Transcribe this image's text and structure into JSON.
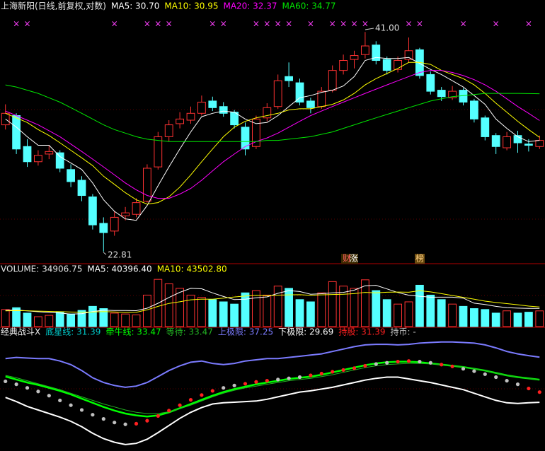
{
  "chart_data": [
    {
      "type": "candlestick",
      "title": "上海新阳(日线,前复权,对数)",
      "log_scale": true,
      "ylim": [
        22.3,
        43
      ],
      "up_color": "#ff3232",
      "down_color": "#54ffff",
      "categories": [
        null,
        null,
        null,
        null,
        null,
        null,
        null,
        null,
        null,
        null,
        null,
        null,
        null,
        null,
        null,
        null,
        null,
        null,
        null,
        null,
        null,
        null,
        null,
        null,
        null,
        null,
        null,
        null,
        null,
        null,
        null,
        null,
        null,
        null,
        null,
        null,
        null,
        null,
        null,
        null,
        null,
        null,
        null,
        null,
        null,
        null,
        null,
        null,
        null,
        null
      ],
      "ohlc": [
        [
          32.0,
          33.8,
          31.6,
          33.0
        ],
        [
          32.8,
          33.0,
          29.6,
          30.0
        ],
        [
          30.2,
          30.8,
          28.6,
          29.0
        ],
        [
          29.0,
          29.9,
          28.7,
          29.5
        ],
        [
          29.6,
          30.3,
          29.2,
          29.8
        ],
        [
          29.7,
          29.9,
          28.2,
          28.5
        ],
        [
          28.4,
          28.8,
          27.1,
          27.5
        ],
        [
          27.6,
          27.9,
          26.1,
          26.5
        ],
        [
          26.4,
          26.6,
          24.2,
          24.5
        ],
        [
          24.6,
          25.0,
          22.81,
          24.0
        ],
        [
          24.1,
          25.4,
          23.8,
          25.0
        ],
        [
          25.1,
          25.7,
          24.8,
          25.3
        ],
        [
          25.2,
          26.3,
          25.0,
          26.0
        ],
        [
          26.1,
          28.8,
          26.0,
          28.5
        ],
        [
          28.6,
          31.4,
          28.4,
          31.0
        ],
        [
          31.0,
          32.4,
          30.6,
          32.0
        ],
        [
          32.1,
          33.1,
          31.7,
          32.5
        ],
        [
          32.4,
          33.6,
          32.1,
          33.0
        ],
        [
          33.0,
          34.6,
          32.8,
          34.0
        ],
        [
          34.1,
          34.5,
          33.2,
          33.5
        ],
        [
          33.6,
          34.0,
          32.7,
          33.0
        ],
        [
          33.1,
          33.3,
          31.7,
          32.0
        ],
        [
          31.8,
          32.2,
          29.5,
          30.0
        ],
        [
          30.2,
          32.8,
          30.0,
          32.5
        ],
        [
          32.6,
          33.9,
          32.3,
          33.5
        ],
        [
          33.6,
          36.6,
          33.4,
          36.0
        ],
        [
          36.4,
          37.8,
          35.4,
          36.0
        ],
        [
          35.8,
          36.2,
          33.7,
          34.0
        ],
        [
          34.1,
          34.4,
          33.0,
          33.5
        ],
        [
          33.6,
          35.4,
          33.4,
          35.0
        ],
        [
          35.1,
          37.5,
          34.9,
          37.0
        ],
        [
          37.0,
          38.6,
          36.6,
          38.0
        ],
        [
          38.1,
          39.0,
          37.2,
          38.5
        ],
        [
          38.6,
          41.0,
          38.2,
          39.5
        ],
        [
          39.6,
          40.0,
          37.6,
          38.0
        ],
        [
          38.1,
          38.4,
          36.6,
          37.0
        ],
        [
          37.1,
          38.4,
          36.8,
          38.0
        ],
        [
          38.1,
          40.4,
          37.8,
          39.0
        ],
        [
          39.1,
          39.3,
          36.2,
          36.5
        ],
        [
          36.6,
          36.9,
          34.7,
          35.0
        ],
        [
          35.1,
          35.4,
          34.1,
          34.5
        ],
        [
          34.4,
          35.5,
          34.2,
          35.0
        ],
        [
          35.1,
          35.3,
          33.7,
          34.0
        ],
        [
          34.1,
          34.3,
          32.2,
          32.5
        ],
        [
          32.6,
          32.8,
          30.7,
          31.0
        ],
        [
          31.1,
          31.3,
          29.6,
          30.2
        ],
        [
          30.1,
          31.4,
          29.9,
          31.0
        ],
        [
          31.1,
          31.5,
          29.7,
          30.5
        ],
        [
          30.4,
          30.8,
          29.8,
          30.3
        ],
        [
          30.2,
          31.1,
          30.0,
          30.7
        ]
      ],
      "series": [
        {
          "name": "MA5: 30.70",
          "color": "#ffffff",
          "values": [
            32.5,
            31.8,
            31.0,
            30.3,
            30.3,
            29.4,
            28.9,
            28.4,
            27.4,
            26.2,
            25.4,
            24.9,
            24.8,
            25.8,
            27.2,
            28.6,
            30.0,
            31.4,
            32.7,
            33.0,
            33.2,
            33.1,
            32.5,
            32.1,
            32.2,
            32.8,
            33.6,
            34.4,
            34.6,
            34.9,
            35.1,
            35.5,
            36.4,
            38.0,
            38.3,
            38.2,
            38.2,
            38.3,
            37.7,
            37.1,
            36.6,
            36.0,
            35.4,
            34.6,
            33.8,
            32.5,
            31.7,
            31.0,
            30.6,
            30.7
          ]
        },
        {
          "name": "MA10: 30.95",
          "color": "#ffff00",
          "values": [
            33.0,
            32.6,
            32.2,
            31.6,
            31.1,
            30.5,
            29.9,
            29.3,
            28.7,
            27.9,
            27.3,
            26.7,
            26.2,
            25.9,
            26.0,
            26.4,
            27.1,
            28.0,
            29.0,
            30.0,
            31.0,
            31.8,
            32.3,
            32.6,
            32.8,
            33.0,
            33.3,
            33.4,
            33.4,
            33.6,
            33.8,
            34.2,
            34.8,
            35.6,
            36.2,
            36.7,
            37.2,
            37.8,
            37.8,
            37.6,
            37.0,
            36.6,
            36.2,
            35.6,
            34.8,
            33.9,
            33.1,
            32.3,
            31.6,
            30.95
          ]
        },
        {
          "name": "MA20: 32.37",
          "color": "#ff00ff",
          "values": [
            33.2,
            32.8,
            32.4,
            32.0,
            31.5,
            31.0,
            30.4,
            29.8,
            29.2,
            28.6,
            28.0,
            27.4,
            26.9,
            26.5,
            26.3,
            26.3,
            26.6,
            27.0,
            27.6,
            28.3,
            29.0,
            29.6,
            30.2,
            30.6,
            30.9,
            31.3,
            31.8,
            32.3,
            32.8,
            33.2,
            33.6,
            34.0,
            34.4,
            34.8,
            35.2,
            35.6,
            36.0,
            36.4,
            36.8,
            37.0,
            37.0,
            36.8,
            36.5,
            36.1,
            35.6,
            35.0,
            34.3,
            33.6,
            33.0,
            32.37
          ]
        },
        {
          "name": "MA60: 34.77",
          "color": "#00e600",
          "values": [
            35.6,
            35.4,
            35.1,
            34.8,
            34.4,
            34.0,
            33.5,
            33.0,
            32.5,
            32.0,
            31.6,
            31.3,
            31.0,
            30.8,
            30.7,
            30.6,
            30.6,
            30.6,
            30.6,
            30.6,
            30.6,
            30.6,
            30.6,
            30.6,
            30.7,
            30.7,
            30.8,
            30.9,
            31.0,
            31.2,
            31.4,
            31.7,
            32.0,
            32.3,
            32.6,
            32.9,
            33.2,
            33.5,
            33.8,
            34.1,
            34.3,
            34.5,
            34.6,
            34.7,
            34.8,
            34.8,
            34.8,
            34.8,
            34.78,
            34.77
          ]
        }
      ],
      "signal": {
        "label": "×",
        "color": "#ff40ff",
        "days": [
          1,
          2,
          10,
          13,
          14,
          15,
          19,
          20,
          23,
          24,
          25,
          26,
          28,
          30,
          31,
          32,
          33,
          37,
          38,
          42,
          45,
          48
        ]
      },
      "annotations": [
        "41.00",
        "22.81",
        "财",
        "涨",
        "榜"
      ]
    },
    {
      "type": "bar",
      "name": "VOLUME: 34906.75",
      "ylim": [
        0,
        110000
      ],
      "values": [
        38000,
        42000,
        30000,
        22000,
        25000,
        33000,
        28000,
        36000,
        45000,
        40000,
        30000,
        28000,
        26000,
        70000,
        105000,
        95000,
        85000,
        70000,
        65000,
        60000,
        55000,
        50000,
        75000,
        80000,
        70000,
        90000,
        85000,
        60000,
        55000,
        75000,
        100000,
        90000,
        85000,
        104000,
        80000,
        60000,
        50000,
        55000,
        92000,
        70000,
        60000,
        50000,
        45000,
        40000,
        38000,
        30000,
        35000,
        30000,
        32000,
        34906.75
      ],
      "series": [
        {
          "name": "MA5: 40396.40",
          "color": "#ffffff",
          "values": [
            36000,
            37000,
            35000,
            33000,
            31400,
            30400,
            27600,
            28800,
            33400,
            36400,
            35800,
            35800,
            35400,
            40800,
            51800,
            64800,
            76200,
            85000,
            84000,
            75000,
            67000,
            60000,
            61000,
            64000,
            66000,
            74000,
            80000,
            78000,
            72000,
            73000,
            75000,
            76000,
            81000,
            90800,
            91800,
            83800,
            75800,
            69800,
            67400,
            65400,
            65400,
            65400,
            63400,
            52000,
            49000,
            45000,
            42000,
            41000,
            40600,
            40396.4
          ]
        },
        {
          "name": "MA10: 43502.80",
          "color": "#ffff00",
          "values": [
            35000,
            35500,
            35200,
            34400,
            33800,
            33200,
            32300,
            32000,
            32400,
            33400,
            32600,
            31400,
            31800,
            37200,
            45000,
            51600,
            55200,
            59600,
            61200,
            60800,
            63400,
            65800,
            67900,
            69500,
            68500,
            69900,
            70600,
            70800,
            69600,
            70500,
            71300,
            72000,
            73200,
            76000,
            75000,
            76400,
            76800,
            76300,
            79700,
            77200,
            73200,
            69100,
            65100,
            60800,
            56600,
            53600,
            51100,
            48600,
            45600,
            43502.8
          ]
        }
      ]
    },
    {
      "type": "line",
      "title": "经典战斗X",
      "label": "底星线: 31.39",
      "label_color": "#00c8c8",
      "ylim": [
        22,
        40
      ],
      "series": [
        {
          "name": "牵牛线: 33.47",
          "color": "#00ff00",
          "width": 2.5,
          "style": "line",
          "values": [
            34.0,
            33.5,
            33.0,
            32.6,
            32.1,
            31.6,
            31.0,
            30.3,
            29.6,
            28.9,
            28.3,
            27.8,
            27.5,
            27.3,
            27.5,
            28.0,
            28.7,
            29.4,
            30.1,
            30.8,
            31.4,
            31.9,
            32.3,
            32.7,
            33.0,
            33.3,
            33.6,
            33.8,
            34.0,
            34.3,
            34.7,
            35.1,
            35.5,
            35.9,
            36.2,
            36.4,
            36.5,
            36.5,
            36.4,
            36.2,
            36.0,
            35.8,
            35.6,
            35.3,
            35.0,
            34.6,
            34.2,
            33.9,
            33.7,
            33.47
          ]
        },
        {
          "name": "等待: 33.47",
          "color": "#22b022",
          "width": 1,
          "style": "line",
          "values": [
            34.2,
            33.8,
            33.3,
            32.8,
            32.3,
            31.8,
            31.2,
            30.6,
            30.0,
            29.4,
            28.9,
            28.4,
            28.0,
            27.8,
            27.8,
            28.1,
            28.6,
            29.2,
            29.9,
            30.6,
            31.2,
            31.7,
            32.1,
            32.4,
            32.7,
            33.0,
            33.3,
            33.5,
            33.7,
            34.0,
            34.3,
            34.7,
            35.1,
            35.5,
            35.8,
            36.0,
            36.1,
            36.2,
            36.2,
            36.1,
            36.0,
            35.8,
            35.6,
            35.3,
            35.0,
            34.6,
            34.2,
            33.9,
            33.7,
            33.47
          ]
        },
        {
          "name": "上极限: 37.25",
          "color": "#7b7bff",
          "width": 2,
          "style": "line",
          "values": [
            37.0,
            37.2,
            37.1,
            37.0,
            37.0,
            36.6,
            36.0,
            35.0,
            33.8,
            33.0,
            32.5,
            32.2,
            32.4,
            33.0,
            34.0,
            35.0,
            35.8,
            36.4,
            36.6,
            36.2,
            36.0,
            36.2,
            36.6,
            36.8,
            37.0,
            37.0,
            37.2,
            37.4,
            37.6,
            37.8,
            38.2,
            38.6,
            39.0,
            39.3,
            39.4,
            39.4,
            39.3,
            39.4,
            39.6,
            39.7,
            39.8,
            39.8,
            39.7,
            39.6,
            39.3,
            38.8,
            38.2,
            37.8,
            37.5,
            37.25
          ]
        },
        {
          "name": "下极限: 29.69",
          "color": "#ffffff",
          "width": 2,
          "style": "line",
          "values": [
            30.5,
            29.8,
            29.0,
            28.4,
            27.8,
            27.2,
            26.5,
            25.6,
            24.5,
            23.6,
            23.0,
            22.6,
            22.8,
            23.5,
            24.6,
            25.8,
            27.0,
            28.0,
            28.8,
            29.4,
            29.6,
            29.7,
            29.8,
            29.9,
            30.2,
            30.6,
            31.0,
            31.4,
            31.6,
            31.9,
            32.2,
            32.6,
            33.0,
            33.4,
            33.7,
            33.9,
            33.9,
            33.6,
            33.3,
            33.0,
            32.6,
            32.2,
            31.8,
            31.2,
            30.6,
            30.0,
            29.6,
            29.5,
            29.6,
            29.69
          ]
        },
        {
          "name": "持股: 31.39",
          "color": "#ff2020",
          "style": "dots",
          "values": [
            null,
            null,
            null,
            null,
            null,
            null,
            null,
            null,
            null,
            null,
            null,
            null,
            26.1,
            26.6,
            27.4,
            28.3,
            29.2,
            30.1,
            30.9,
            31.6,
            null,
            null,
            32.8,
            33.1,
            33.3,
            null,
            null,
            null,
            34.2,
            34.5,
            34.8,
            35.1,
            35.4,
            35.8,
            null,
            null,
            36.5,
            36.6,
            null,
            null,
            36.0,
            35.7,
            null,
            null,
            null,
            null,
            null,
            null,
            32.0,
            31.39
          ]
        },
        {
          "name": "持币: -",
          "color": "#c0c0c0",
          "style": "dots",
          "values": [
            33.2,
            32.7,
            32.1,
            31.5,
            30.8,
            30.0,
            29.2,
            28.4,
            27.6,
            26.9,
            26.3,
            26.0,
            null,
            null,
            null,
            null,
            null,
            null,
            null,
            null,
            32.1,
            32.5,
            null,
            null,
            null,
            33.5,
            33.7,
            33.9,
            null,
            null,
            null,
            null,
            null,
            null,
            36.1,
            36.3,
            null,
            null,
            36.5,
            36.3,
            null,
            null,
            35.3,
            34.9,
            34.4,
            33.9,
            33.3,
            32.7,
            null,
            null
          ]
        }
      ]
    }
  ]
}
